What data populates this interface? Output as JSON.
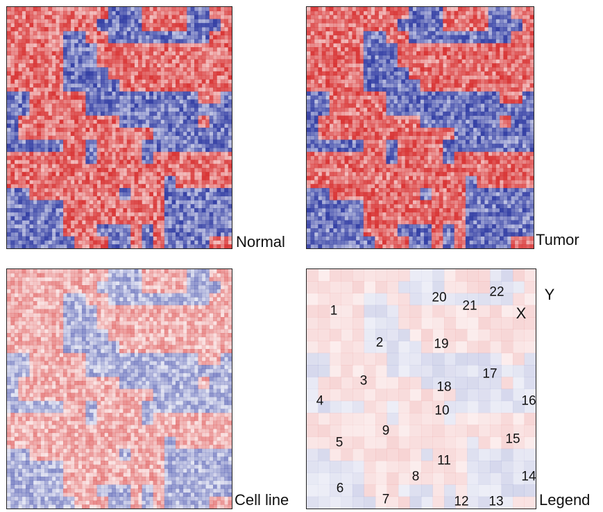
{
  "panels": {
    "normal": {
      "label": "Normal"
    },
    "tumor": {
      "label": "Tumor"
    },
    "cellline": {
      "label": "Cell line"
    },
    "legend": {
      "label": "Legend"
    }
  },
  "colors": {
    "red": "#d62a2a",
    "blue": "#2a36a0",
    "background": "#ffffff"
  },
  "legend_numbers": [
    "1",
    "2",
    "3",
    "4",
    "5",
    "6",
    "7",
    "8",
    "9",
    "10",
    "11",
    "12",
    "13",
    "14",
    "15",
    "16",
    "17",
    "18",
    "19",
    "20",
    "21",
    "22"
  ],
  "legend_letters": [
    "X",
    "Y"
  ]
}
